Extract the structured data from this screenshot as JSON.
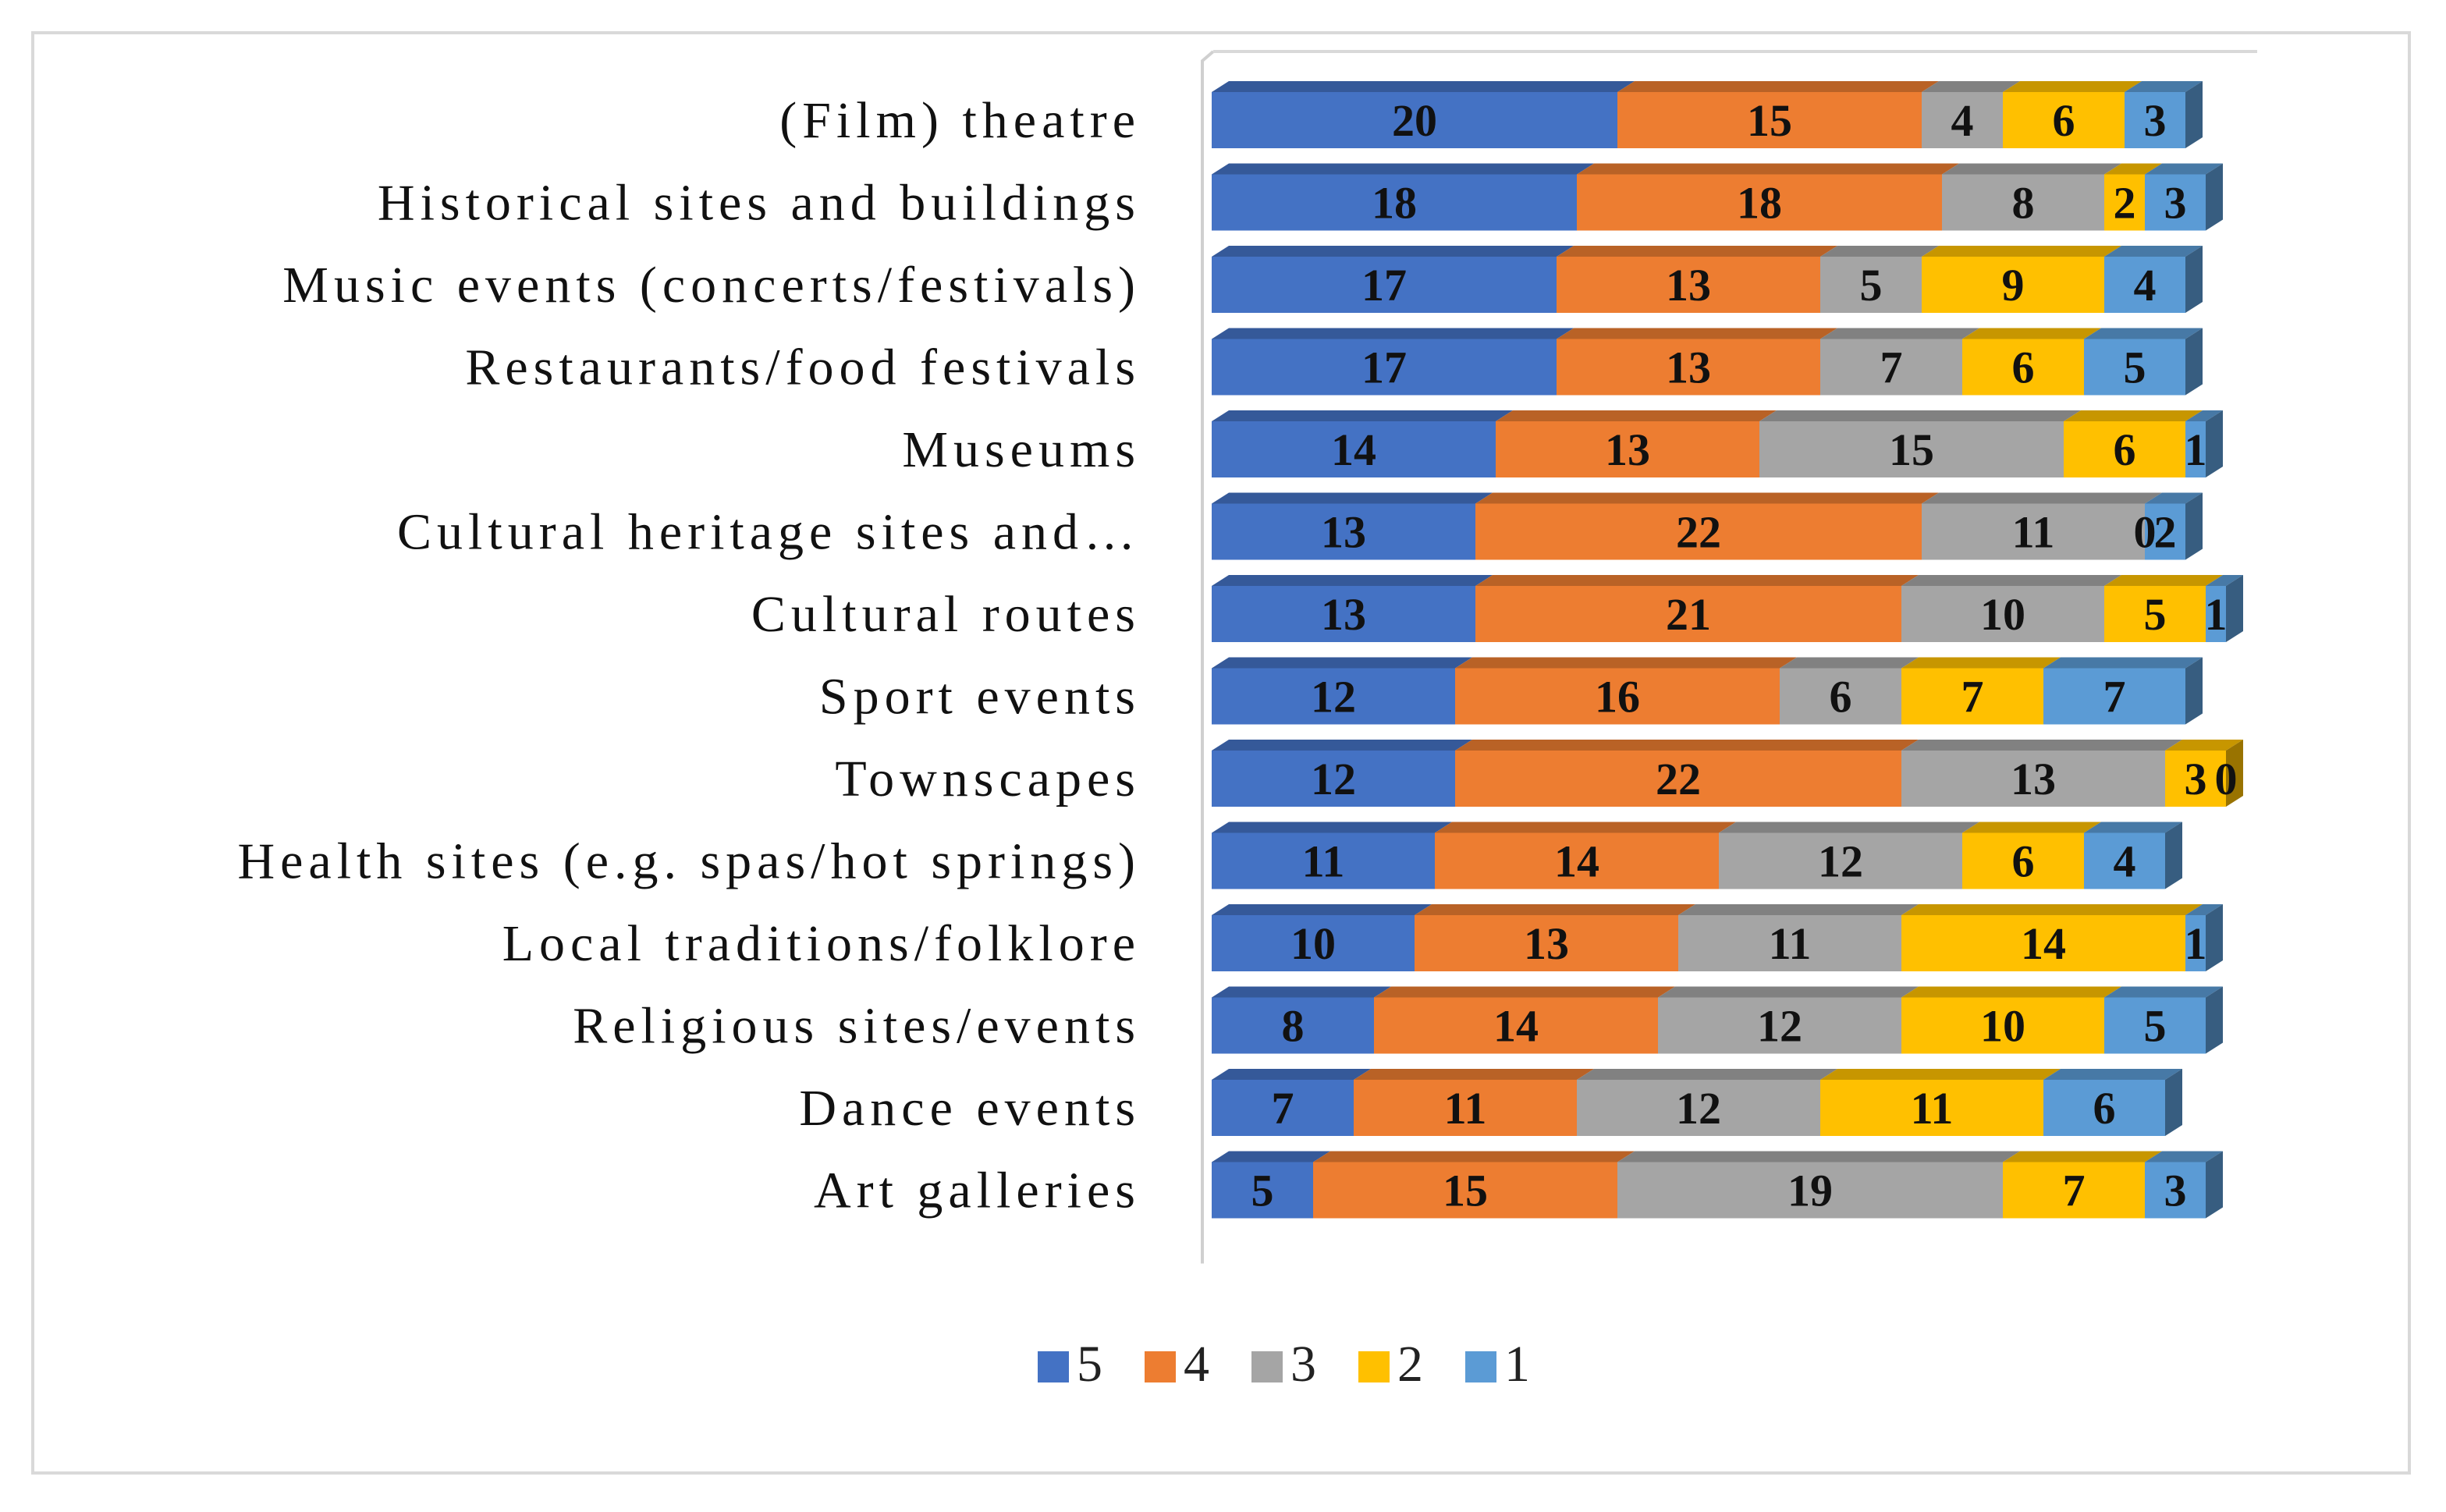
{
  "chart_data": {
    "type": "bar",
    "orientation": "horizontal",
    "stacked": true,
    "style": "3d",
    "categories": [
      "(Film) theatre",
      "Historical sites and buildings",
      "Music events (concerts/festivals)",
      "Restaurants/food festivals",
      "Museums",
      "Cultural heritage sites and…",
      "Cultural routes",
      "Sport events",
      "Townscapes",
      "Health sites (e.g. spas/hot springs)",
      "Local traditions/folklore",
      "Religious sites/events",
      "Dance events",
      "Art galleries"
    ],
    "series": [
      {
        "name": "5",
        "color": "#4472C4",
        "values": [
          20,
          18,
          17,
          17,
          14,
          13,
          13,
          12,
          12,
          11,
          10,
          8,
          7,
          5
        ]
      },
      {
        "name": "4",
        "color": "#ED7D31",
        "values": [
          15,
          18,
          13,
          13,
          13,
          22,
          21,
          16,
          22,
          14,
          13,
          14,
          11,
          15
        ]
      },
      {
        "name": "3",
        "color": "#A5A5A5",
        "values": [
          4,
          8,
          5,
          7,
          15,
          11,
          10,
          6,
          13,
          12,
          11,
          12,
          12,
          19
        ]
      },
      {
        "name": "2",
        "color": "#FFC000",
        "values": [
          6,
          2,
          9,
          6,
          6,
          0,
          5,
          7,
          3,
          6,
          14,
          10,
          11,
          7
        ]
      },
      {
        "name": "1",
        "color": "#5B9BD5",
        "values": [
          3,
          3,
          4,
          5,
          1,
          2,
          1,
          7,
          0,
          4,
          1,
          5,
          6,
          3
        ]
      }
    ],
    "legend_position": "bottom",
    "gridlines": false,
    "data_labels": true,
    "title": "",
    "xlabel": "",
    "ylabel": ""
  }
}
